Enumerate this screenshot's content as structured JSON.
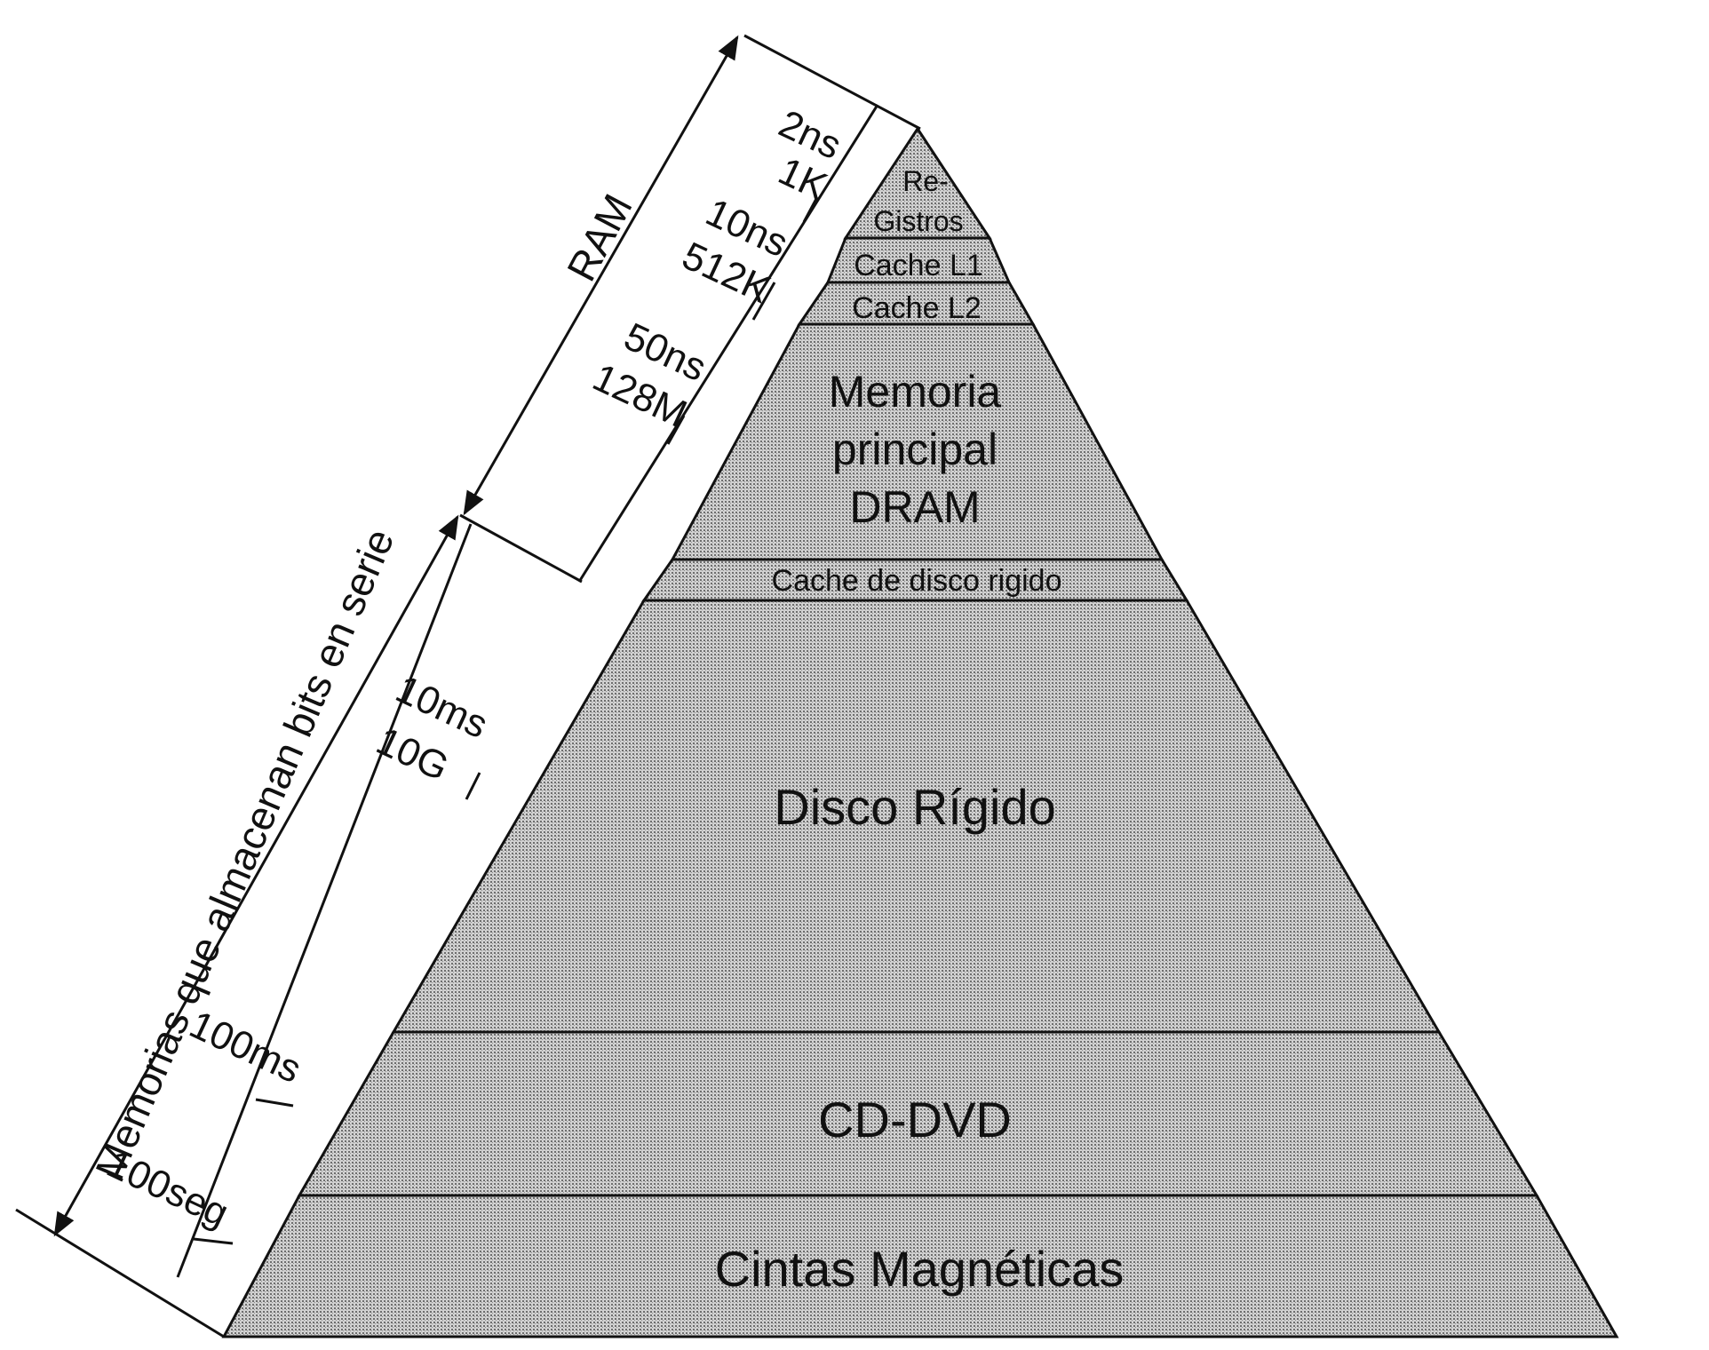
{
  "pyramid_levels": [
    {
      "id": "registros",
      "lines": [
        "Re-",
        "Gistros"
      ]
    },
    {
      "id": "cache-l1",
      "lines": [
        "Cache L1"
      ]
    },
    {
      "id": "cache-l2",
      "lines": [
        "Cache L2"
      ]
    },
    {
      "id": "memoria-principal",
      "lines": [
        "Memoria",
        "principal",
        "DRAM"
      ]
    },
    {
      "id": "cache-disco",
      "lines": [
        "Cache de disco rigido"
      ]
    },
    {
      "id": "disco-rigido",
      "lines": [
        "Disco Rígido"
      ]
    },
    {
      "id": "cd-dvd",
      "lines": [
        "CD-DVD"
      ]
    },
    {
      "id": "cintas",
      "lines": [
        "Cintas Magnéticas"
      ]
    }
  ],
  "side_labels": {
    "ram": "RAM",
    "serial": "Memorias que almacenan bits en serie"
  },
  "access_specs": [
    {
      "time": "2ns",
      "size": "1K"
    },
    {
      "time": "10ns",
      "size": "512K"
    },
    {
      "time": "50ns",
      "size": "128M"
    },
    {
      "time": "10ms",
      "size": "10G"
    },
    {
      "time": "100ms",
      "size": ""
    },
    {
      "time": "100seg",
      "size": ""
    }
  ]
}
